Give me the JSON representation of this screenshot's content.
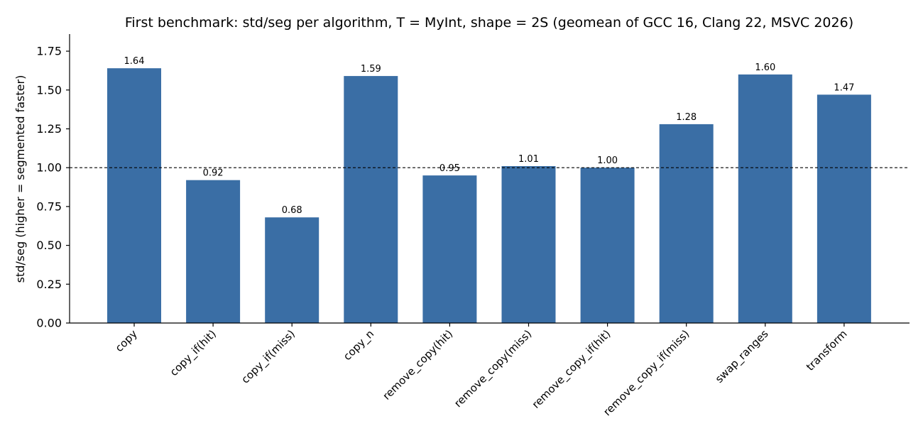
{
  "chart_data": {
    "type": "bar",
    "title": "First benchmark: std/seg per algorithm, T = MyInt, shape = 2S (geomean of GCC 16, Clang 22, MSVC 2026)",
    "xlabel": "",
    "ylabel": "std/seg  (higher = segmented faster)",
    "categories": [
      "copy",
      "copy_if(hit)",
      "copy_if(miss)",
      "copy_n",
      "remove_copy(hit)",
      "remove_copy(miss)",
      "remove_copy_if(hit)",
      "remove_copy_if(miss)",
      "swap_ranges",
      "transform"
    ],
    "values": [
      1.64,
      0.92,
      0.68,
      1.59,
      0.95,
      1.01,
      1.0,
      1.28,
      1.6,
      1.47
    ],
    "data_labels": [
      "1.64",
      "0.92",
      "0.68",
      "1.59",
      "0.95",
      "1.01",
      "1.00",
      "1.28",
      "1.60",
      "1.47"
    ],
    "ylim": [
      0,
      1.86
    ],
    "yticks": [
      0.0,
      0.25,
      0.5,
      0.75,
      1.0,
      1.25,
      1.5,
      1.75
    ],
    "ytick_labels": [
      "0.00",
      "0.25",
      "0.50",
      "0.75",
      "1.00",
      "1.25",
      "1.50",
      "1.75"
    ],
    "reference_line": {
      "y": 1.0,
      "style": "dashed",
      "color": "#000000"
    },
    "bar_color": "#3a6ea5",
    "grid": false,
    "legend": "none"
  }
}
